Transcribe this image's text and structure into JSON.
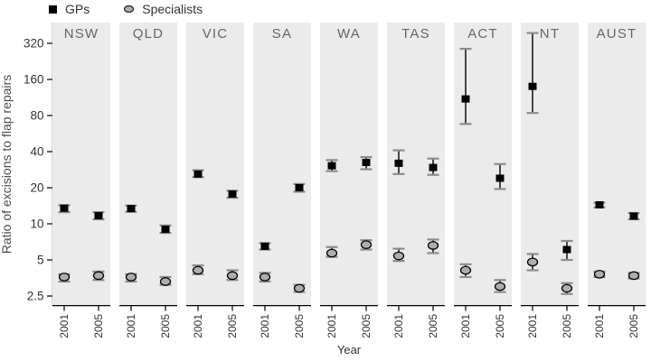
{
  "colors": {
    "panel_bg": "#ebebeb",
    "gp_marker": "#000000",
    "specialist_fill": "#adadad",
    "specialist_stroke": "#000000",
    "error_line": "#000000",
    "error_cap": "#8c8c8c",
    "axis_line": "#000000",
    "tick_text": "#333333",
    "strip_text": "#666666",
    "axis_label_text": "#4d4d4d"
  },
  "legend": {
    "items": [
      {
        "label": "GPs",
        "marker": "square"
      },
      {
        "label": "Specialists",
        "marker": "circle"
      }
    ]
  },
  "chart_data": {
    "type": "scatter",
    "title": "",
    "ylabel": "Ratio of excisions to flap repairs",
    "xlabel": "Year",
    "y_scale": "log2",
    "y_ticks": [
      2.5,
      5,
      10,
      20,
      40,
      80,
      160,
      320
    ],
    "y_range": [
      2.2,
      480
    ],
    "x_categories": [
      "2001",
      "2005"
    ],
    "grid": false,
    "legend_position": "top-left",
    "series_names": [
      "GPs",
      "Specialists"
    ],
    "error_bars": "95% interval (lo/hi)",
    "panels": [
      {
        "label": "NSW",
        "GPs": [
          {
            "year": "2001",
            "value": 13.5,
            "lo": 12.5,
            "hi": 14.3
          },
          {
            "year": "2005",
            "value": 11.7,
            "lo": 10.9,
            "hi": 12.5
          }
        ],
        "Specialists": [
          {
            "year": "2001",
            "value": 3.6,
            "lo": 3.3,
            "hi": 3.8
          },
          {
            "year": "2005",
            "value": 3.7,
            "lo": 3.4,
            "hi": 4.0
          }
        ]
      },
      {
        "label": "QLD",
        "GPs": [
          {
            "year": "2001",
            "value": 13.4,
            "lo": 12.6,
            "hi": 14.2
          },
          {
            "year": "2005",
            "value": 9.0,
            "lo": 8.4,
            "hi": 9.7
          }
        ],
        "Specialists": [
          {
            "year": "2001",
            "value": 3.6,
            "lo": 3.3,
            "hi": 3.8
          },
          {
            "year": "2005",
            "value": 3.3,
            "lo": 3.1,
            "hi": 3.6
          }
        ]
      },
      {
        "label": "VIC",
        "GPs": [
          {
            "year": "2001",
            "value": 26.0,
            "lo": 24.5,
            "hi": 28.0
          },
          {
            "year": "2005",
            "value": 17.7,
            "lo": 16.5,
            "hi": 18.9
          }
        ],
        "Specialists": [
          {
            "year": "2001",
            "value": 4.1,
            "lo": 3.8,
            "hi": 4.5
          },
          {
            "year": "2005",
            "value": 3.7,
            "lo": 3.4,
            "hi": 4.1
          }
        ]
      },
      {
        "label": "SA",
        "GPs": [
          {
            "year": "2001",
            "value": 6.5,
            "lo": 6.1,
            "hi": 6.9
          },
          {
            "year": "2005",
            "value": 20.0,
            "lo": 18.5,
            "hi": 21.5
          }
        ],
        "Specialists": [
          {
            "year": "2001",
            "value": 3.6,
            "lo": 3.3,
            "hi": 3.9
          },
          {
            "year": "2005",
            "value": 2.9,
            "lo": 2.7,
            "hi": 3.1
          }
        ]
      },
      {
        "label": "WA",
        "GPs": [
          {
            "year": "2001",
            "value": 30.5,
            "lo": 27.5,
            "hi": 34.0
          },
          {
            "year": "2005",
            "value": 32.5,
            "lo": 28.5,
            "hi": 36.0
          }
        ],
        "Specialists": [
          {
            "year": "2001",
            "value": 5.7,
            "lo": 5.3,
            "hi": 6.4
          },
          {
            "year": "2005",
            "value": 6.7,
            "lo": 6.1,
            "hi": 7.3
          }
        ]
      },
      {
        "label": "TAS",
        "GPs": [
          {
            "year": "2001",
            "value": 32.0,
            "lo": 26.0,
            "hi": 41.0
          },
          {
            "year": "2005",
            "value": 29.5,
            "lo": 25.6,
            "hi": 35.0
          }
        ],
        "Specialists": [
          {
            "year": "2001",
            "value": 5.4,
            "lo": 4.9,
            "hi": 6.2
          },
          {
            "year": "2005",
            "value": 6.6,
            "lo": 5.7,
            "hi": 7.4
          }
        ]
      },
      {
        "label": "ACT",
        "GPs": [
          {
            "year": "2001",
            "value": 110.0,
            "lo": 68.0,
            "hi": 288.0
          },
          {
            "year": "2005",
            "value": 24.0,
            "lo": 19.5,
            "hi": 31.5
          }
        ],
        "Specialists": [
          {
            "year": "2001",
            "value": 4.1,
            "lo": 3.6,
            "hi": 4.6
          },
          {
            "year": "2005",
            "value": 3.0,
            "lo": 2.7,
            "hi": 3.4
          }
        ]
      },
      {
        "label": "NT",
        "GPs": [
          {
            "year": "2001",
            "value": 140.0,
            "lo": 84.0,
            "hi": 390.0
          },
          {
            "year": "2005",
            "value": 6.1,
            "lo": 5.0,
            "hi": 7.2
          }
        ],
        "Specialists": [
          {
            "year": "2001",
            "value": 4.8,
            "lo": 4.1,
            "hi": 5.6
          },
          {
            "year": "2005",
            "value": 2.9,
            "lo": 2.6,
            "hi": 3.2
          }
        ]
      },
      {
        "label": "AUST",
        "GPs": [
          {
            "year": "2001",
            "value": 14.4,
            "lo": 13.7,
            "hi": 15.0
          },
          {
            "year": "2005",
            "value": 11.6,
            "lo": 10.9,
            "hi": 12.3
          }
        ],
        "Specialists": [
          {
            "year": "2001",
            "value": 3.8,
            "lo": 3.6,
            "hi": 4.0
          },
          {
            "year": "2005",
            "value": 3.7,
            "lo": 3.5,
            "hi": 3.9
          }
        ]
      }
    ]
  }
}
